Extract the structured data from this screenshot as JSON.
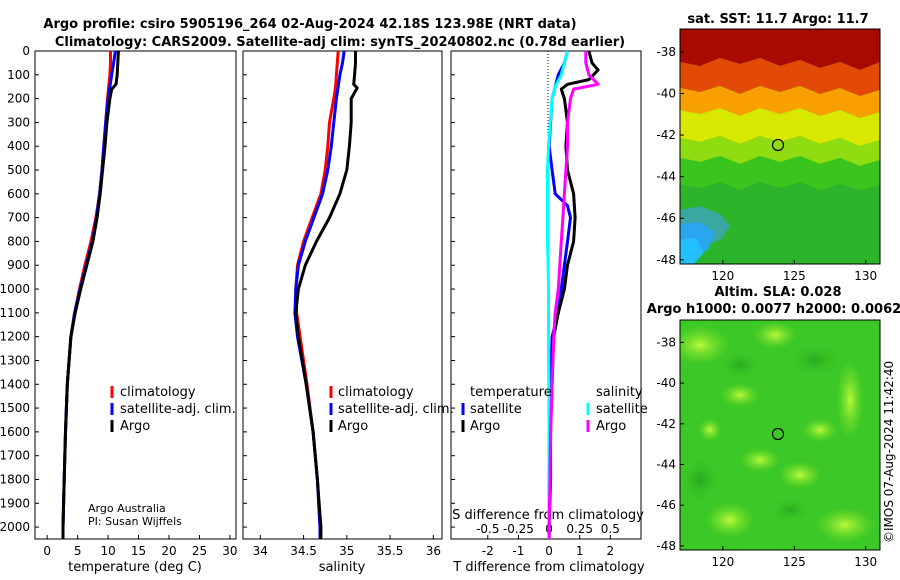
{
  "figure": {
    "title_line1": "Argo profile: csiro 5905196_264 02-Aug-2024 42.18S 123.98E (NRT data)",
    "title_line2": "Climatology: CARS2009. Satellite-adj clim: synTS_20240802.nc (0.78d earlier)",
    "credit_line1": "Argo Australia",
    "credit_line2": "PI: Susan Wijffels",
    "watermark": "©IMOS 07-Aug-2024 11:42:40",
    "colors": {
      "climatology": "#ff0000",
      "satellite_clim": "#0000ff",
      "argo": "#000000",
      "satellite_s": "#00ffff",
      "argo_s": "#ff00ff"
    }
  },
  "chart_data": [
    {
      "id": "temperature",
      "type": "line",
      "xlabel": "temperature (deg C)",
      "xlim": [
        -2,
        31
      ],
      "xticks": [
        0,
        5,
        10,
        15,
        20,
        25,
        30
      ],
      "ylim": [
        0,
        2050
      ],
      "yticks": [
        0,
        100,
        200,
        300,
        400,
        500,
        600,
        700,
        800,
        900,
        1000,
        1100,
        1200,
        1300,
        1400,
        1500,
        1600,
        1700,
        1800,
        1900,
        2000
      ],
      "legend": [
        "climatology",
        "satellite-adj. clim.",
        "Argo"
      ],
      "series": [
        {
          "name": "climatology",
          "color": "#ff0000",
          "depth": [
            0,
            50,
            100,
            150,
            200,
            300,
            400,
            500,
            600,
            700,
            800,
            900,
            1000,
            1100,
            1200,
            1400,
            1600,
            1800,
            2000,
            2050
          ],
          "values": [
            10.4,
            10.4,
            10.3,
            10.1,
            9.9,
            9.6,
            9.3,
            9.0,
            8.6,
            8.0,
            7.2,
            6.2,
            5.3,
            4.5,
            3.9,
            3.3,
            3.0,
            2.8,
            2.6,
            2.6
          ]
        },
        {
          "name": "satellite-adj. clim.",
          "color": "#0000ff",
          "depth": [
            0,
            50,
            100,
            150,
            200,
            300,
            400,
            500,
            600,
            700,
            800,
            900,
            1000,
            1100,
            1200,
            1400,
            1600,
            1800,
            2000,
            2050
          ],
          "values": [
            11.2,
            10.9,
            10.6,
            10.3,
            10.0,
            9.6,
            9.3,
            9.0,
            8.6,
            8.1,
            7.4,
            6.4,
            5.4,
            4.5,
            3.9,
            3.3,
            3.0,
            2.8,
            2.6,
            2.6
          ]
        },
        {
          "name": "Argo",
          "color": "#000000",
          "depth": [
            0,
            50,
            100,
            140,
            160,
            200,
            300,
            400,
            500,
            600,
            700,
            800,
            900,
            1000,
            1100,
            1200,
            1400,
            1600,
            1800,
            2000,
            2050
          ],
          "values": [
            11.7,
            11.6,
            11.5,
            11.3,
            10.6,
            10.3,
            9.8,
            9.5,
            9.1,
            8.7,
            8.2,
            7.5,
            6.5,
            5.5,
            4.6,
            3.9,
            3.3,
            3.0,
            2.8,
            2.6,
            2.6
          ]
        }
      ]
    },
    {
      "id": "salinity",
      "type": "line",
      "xlabel": "salinity",
      "xlim": [
        33.8,
        36.1
      ],
      "xticks": [
        "34",
        "34.5",
        "35",
        "35.5",
        "36"
      ],
      "ylim": [
        0,
        2050
      ],
      "legend": [
        "climatology",
        "satellite-adj. clim.",
        "Argo"
      ],
      "series": [
        {
          "name": "climatology",
          "color": "#ff0000",
          "depth": [
            0,
            100,
            150,
            200,
            300,
            400,
            500,
            600,
            700,
            800,
            900,
            1000,
            1100,
            1200,
            1400,
            1600,
            1800,
            2000,
            2050
          ],
          "values": [
            34.9,
            34.88,
            34.87,
            34.85,
            34.8,
            34.78,
            34.75,
            34.7,
            34.6,
            34.5,
            34.43,
            34.41,
            34.42,
            34.46,
            34.54,
            34.61,
            34.66,
            34.69,
            34.69
          ]
        },
        {
          "name": "satellite-adj. clim.",
          "color": "#0000ff",
          "depth": [
            0,
            50,
            100,
            150,
            200,
            300,
            400,
            500,
            600,
            700,
            800,
            900,
            1000,
            1100,
            1200,
            1400,
            1600,
            1800,
            2000,
            2050
          ],
          "values": [
            34.97,
            34.95,
            34.92,
            34.9,
            34.88,
            34.85,
            34.82,
            34.78,
            34.72,
            34.62,
            34.52,
            34.44,
            34.41,
            34.4,
            34.43,
            34.53,
            34.61,
            34.66,
            34.69,
            34.69
          ]
        },
        {
          "name": "Argo",
          "color": "#000000",
          "depth": [
            0,
            50,
            100,
            140,
            155,
            200,
            300,
            400,
            500,
            600,
            700,
            800,
            900,
            1000,
            1100,
            1200,
            1400,
            1600,
            1800,
            2000,
            2050
          ],
          "values": [
            35.1,
            35.1,
            35.09,
            35.08,
            35.12,
            35.05,
            35.05,
            35.03,
            35.0,
            34.92,
            34.8,
            34.65,
            34.52,
            34.44,
            34.41,
            34.44,
            34.53,
            34.61,
            34.66,
            34.7,
            34.7
          ]
        }
      ]
    },
    {
      "id": "difference",
      "type": "line",
      "xlabel": "T difference from climatology",
      "xlabel_top": "S difference from climatology",
      "xlim": [
        -3.2,
        3.0
      ],
      "xticks": [
        "-2",
        "-1",
        "0",
        "1",
        "2"
      ],
      "s_ticks": [
        "-0.5",
        "-0.25",
        "0",
        "0.25",
        "0.5"
      ],
      "s_scale": 4,
      "ylim": [
        0,
        2050
      ],
      "legend_left_title": "temperature",
      "legend_right_title": "salinity",
      "legend_left": [
        "satellite",
        "Argo"
      ],
      "legend_right": [
        "satellite",
        "Argo"
      ],
      "series": [
        {
          "name": "T satellite",
          "color": "#0000ff",
          "depth": [
            0,
            50,
            100,
            150,
            200,
            300,
            400,
            500,
            600,
            650,
            700,
            800,
            900,
            1000,
            1100,
            1200,
            1400,
            1600,
            1800,
            2000,
            2050
          ],
          "values": [
            0.6,
            0.5,
            0.3,
            0.2,
            0.1,
            0.05,
            0.0,
            0.1,
            0.2,
            0.6,
            0.7,
            0.6,
            0.5,
            0.4,
            0.3,
            0.1,
            0.05,
            0.05,
            0.0,
            0.0,
            0.0
          ]
        },
        {
          "name": "T Argo",
          "color": "#000000",
          "depth": [
            0,
            50,
            80,
            120,
            140,
            160,
            200,
            300,
            400,
            500,
            600,
            700,
            800,
            900,
            1000,
            1100,
            1200,
            1400,
            1600,
            1800,
            2000,
            2050
          ],
          "values": [
            1.3,
            1.4,
            1.6,
            1.3,
            0.6,
            0.4,
            0.5,
            0.6,
            0.55,
            0.6,
            0.8,
            0.85,
            0.8,
            0.6,
            0.5,
            0.3,
            0.15,
            0.1,
            0.05,
            0.05,
            0.0,
            0.0
          ]
        },
        {
          "name": "S satellite",
          "color": "#00ffff",
          "depth": [
            0,
            50,
            100,
            150,
            200,
            300,
            400,
            500,
            600,
            700,
            800,
            900,
            1000,
            1100,
            1200,
            1400,
            1600,
            1800,
            2000,
            2050
          ],
          "values": [
            0.6,
            0.5,
            0.4,
            0.2,
            0.1,
            0.04,
            -0.02,
            -0.05,
            -0.05,
            -0.05,
            -0.05,
            -0.03,
            -0.02,
            -0.02,
            -0.02,
            -0.01,
            0.0,
            0.0,
            0.0,
            0.0
          ]
        },
        {
          "name": "S Argo",
          "color": "#ff00ff",
          "depth": [
            0,
            50,
            100,
            140,
            160,
            200,
            300,
            400,
            500,
            600,
            700,
            800,
            900,
            1000,
            1100,
            1200,
            1400,
            1600,
            1800,
            2000,
            2050
          ],
          "values": [
            1.2,
            1.2,
            1.3,
            1.6,
            0.8,
            0.7,
            0.6,
            0.6,
            0.55,
            0.5,
            0.45,
            0.4,
            0.35,
            0.3,
            0.2,
            0.15,
            0.1,
            0.05,
            0.03,
            0.0,
            0.0
          ]
        }
      ]
    },
    {
      "id": "sst_map",
      "type": "heatmap",
      "title": "sat. SST: 11.7 Argo: 11.7",
      "xticks": [
        "120",
        "125",
        "130"
      ],
      "yticks": [
        "-38",
        "-40",
        "-42",
        "-44",
        "-46",
        "-48"
      ],
      "xlim": [
        117,
        131
      ],
      "ylim": [
        -48.2,
        -36.9
      ],
      "marker": {
        "lon": 123.98,
        "lat": -42.18
      }
    },
    {
      "id": "sla_map",
      "type": "heatmap",
      "title_line1": "Altim. SLA: 0.028",
      "title_line2": "Argo h1000: 0.0077 h2000: 0.0062",
      "xticks": [
        "120",
        "125",
        "130"
      ],
      "yticks": [
        "-38",
        "-40",
        "-42",
        "-44",
        "-46",
        "-48"
      ],
      "xlim": [
        117,
        131
      ],
      "ylim": [
        -48.2,
        -36.9
      ],
      "marker": {
        "lon": 123.98,
        "lat": -42.18
      }
    }
  ]
}
